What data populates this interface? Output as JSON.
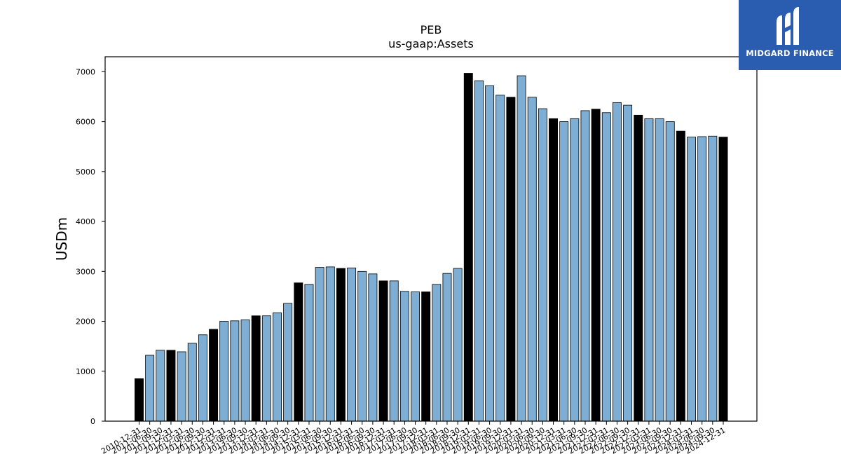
{
  "brand": {
    "name": "MIDGARD FINANCE",
    "bg_color": "#2a5db0"
  },
  "chart_data": {
    "type": "bar",
    "title": "PEB",
    "subtitle": "us-gaap:Assets",
    "xlabel": "",
    "ylabel": "USDm",
    "ylim": [
      0,
      7300
    ],
    "yticks": [
      0,
      1000,
      2000,
      3000,
      4000,
      5000,
      6000,
      7000
    ],
    "grid": false,
    "colors": {
      "annual": "#000000",
      "quarterly": "#7eaed3"
    },
    "categories": [
      "2010-12-31",
      "2011-06-30",
      "2011-09-30",
      "2011-12-31",
      "2012-03-31",
      "2012-06-30",
      "2012-09-30",
      "2012-12-31",
      "2013-03-31",
      "2013-06-30",
      "2013-09-30",
      "2013-12-31",
      "2014-03-31",
      "2014-06-30",
      "2014-09-30",
      "2014-12-31",
      "2015-03-31",
      "2015-06-30",
      "2015-09-30",
      "2015-12-31",
      "2016-03-31",
      "2016-06-30",
      "2016-09-30",
      "2016-12-31",
      "2017-03-31",
      "2017-06-30",
      "2017-09-30",
      "2017-12-31",
      "2018-03-31",
      "2018-06-30",
      "2018-09-30",
      "2018-12-31",
      "2019-03-31",
      "2019-06-30",
      "2019-09-30",
      "2019-12-31",
      "2020-03-31",
      "2020-06-30",
      "2020-09-30",
      "2020-12-31",
      "2021-03-31",
      "2021-06-30",
      "2021-09-30",
      "2021-12-31",
      "2022-03-31",
      "2022-06-30",
      "2022-09-30",
      "2022-12-31",
      "2023-03-31",
      "2023-06-30",
      "2023-09-30",
      "2023-12-31",
      "2024-03-31",
      "2024-06-30",
      "2024-09-30",
      "2024-12-31"
    ],
    "values": [
      850,
      1320,
      1420,
      1420,
      1390,
      1560,
      1730,
      1840,
      2000,
      2010,
      2030,
      2110,
      2110,
      2170,
      2360,
      2770,
      2740,
      3080,
      3090,
      3060,
      3070,
      3000,
      2950,
      2810,
      2810,
      2600,
      2590,
      2590,
      2740,
      2960,
      3060,
      6970,
      6820,
      6720,
      6530,
      6490,
      6920,
      6490,
      6260,
      6060,
      6000,
      6060,
      6220,
      6250,
      6180,
      6380,
      6330,
      6130,
      6060,
      6060,
      6000,
      5810,
      5690,
      5700,
      5710,
      5690
    ],
    "annual_flags": [
      1,
      0,
      0,
      1,
      0,
      0,
      0,
      1,
      0,
      0,
      0,
      1,
      0,
      0,
      0,
      1,
      0,
      0,
      0,
      1,
      0,
      0,
      0,
      1,
      0,
      0,
      0,
      1,
      0,
      0,
      0,
      1,
      0,
      0,
      0,
      1,
      0,
      0,
      0,
      1,
      0,
      0,
      0,
      1,
      0,
      0,
      0,
      1,
      0,
      0,
      0,
      1,
      0,
      0,
      0,
      1
    ]
  }
}
